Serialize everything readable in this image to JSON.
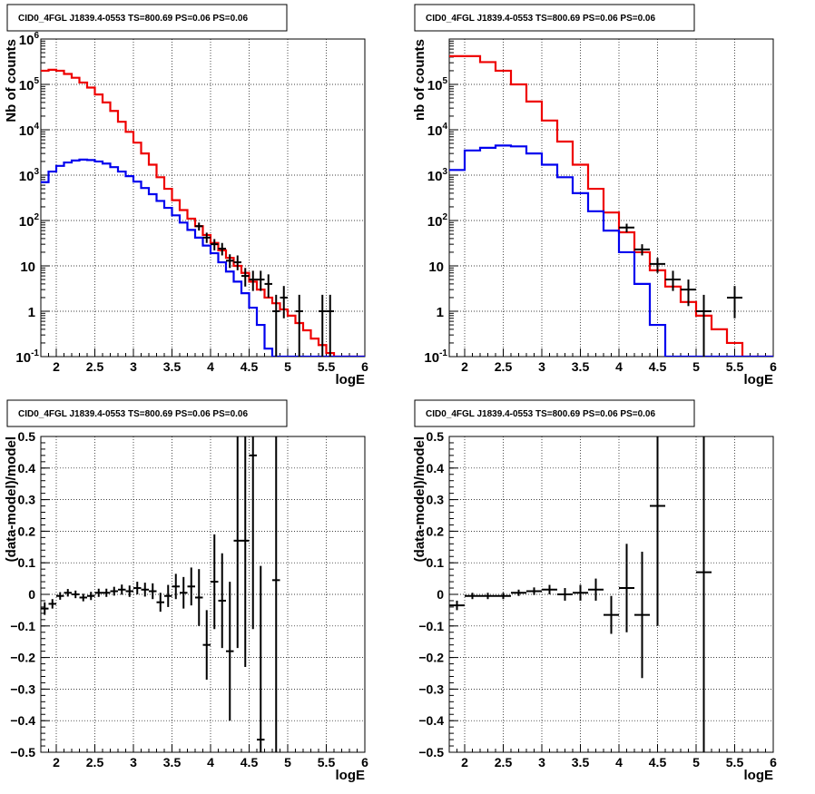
{
  "colors": {
    "model": "#ee0000",
    "source": "#0000ee",
    "data": "#000000"
  },
  "chart_data": [
    {
      "type": "line",
      "title": "CID0_4FGL J1839.4-0553 TS=800.69 PS=0.06 PS=0.06",
      "xlabel": "logE",
      "ylabel": "Nb of counts",
      "xlim": [
        1.8,
        6.0
      ],
      "ylim": [
        0.1,
        1000000
      ],
      "yscale": "log",
      "grid": true,
      "x_ticks": [
        "2",
        "2.5",
        "3",
        "3.5",
        "4",
        "4.5",
        "5",
        "5.5",
        "6"
      ],
      "y_ticks": [
        "10^-1",
        "1",
        "10",
        "10^2",
        "10^3",
        "10^4",
        "10^5",
        "10^6"
      ],
      "bin_edges": [
        1.8,
        1.9,
        2.0,
        2.1,
        2.2,
        2.3,
        2.4,
        2.5,
        2.6,
        2.7,
        2.8,
        2.9,
        3.0,
        3.1,
        3.2,
        3.3,
        3.4,
        3.5,
        3.6,
        3.7,
        3.8,
        3.9,
        4.0,
        4.1,
        4.2,
        4.3,
        4.4,
        4.5,
        4.6,
        4.7,
        4.8,
        4.9,
        5.0,
        5.1,
        5.2,
        5.3,
        5.4,
        5.5,
        5.6,
        5.7,
        5.8,
        5.9,
        6.0
      ],
      "series": [
        {
          "values": [
            200000,
            210000,
            200000,
            170000,
            140000,
            110000,
            85000,
            60000,
            40000,
            26000,
            15000,
            9000,
            5200,
            3000,
            1700,
            900,
            500,
            280,
            170,
            110,
            75,
            48,
            32,
            22,
            15,
            10,
            7,
            4.5,
            3,
            2,
            1.5,
            1.1,
            0.8,
            0.55,
            0.38,
            0.25,
            0.18,
            0.12,
            0.1,
            0.1,
            0.1,
            0.1
          ]
        },
        {
          "values": [
            700,
            1200,
            1600,
            1900,
            2100,
            2200,
            2150,
            2000,
            1800,
            1500,
            1200,
            950,
            720,
            520,
            380,
            270,
            190,
            130,
            90,
            62,
            42,
            28,
            19,
            12,
            7.5,
            4.5,
            2.5,
            1.2,
            0.5,
            0.15,
            0.1,
            0.1,
            0.1,
            0.1,
            0.1,
            0.1,
            0.1,
            0.1,
            0.1,
            0.1,
            0.1,
            0.1
          ]
        }
      ],
      "points": [
        {
          "x": 3.85,
          "y": 75,
          "lo": 60,
          "hi": 90
        },
        {
          "x": 3.95,
          "y": 42,
          "lo": 32,
          "hi": 54
        },
        {
          "x": 4.05,
          "y": 30,
          "lo": 22,
          "hi": 39
        },
        {
          "x": 4.15,
          "y": 24,
          "lo": 17,
          "hi": 32
        },
        {
          "x": 4.25,
          "y": 13,
          "lo": 9,
          "hi": 18
        },
        {
          "x": 4.35,
          "y": 12,
          "lo": 8,
          "hi": 17
        },
        {
          "x": 4.45,
          "y": 6,
          "lo": 3.5,
          "hi": 9
        },
        {
          "x": 4.55,
          "y": 5,
          "lo": 2.8,
          "hi": 7.8
        },
        {
          "x": 4.65,
          "y": 5,
          "lo": 2.8,
          "hi": 7.8
        },
        {
          "x": 4.75,
          "y": 4,
          "lo": 2,
          "hi": 6.5
        },
        {
          "x": 4.85,
          "y": 1,
          "lo": 0.1,
          "hi": 2.3
        },
        {
          "x": 4.95,
          "y": 2,
          "lo": 0.7,
          "hi": 3.6
        },
        {
          "x": 5.15,
          "y": 1,
          "lo": 0.1,
          "hi": 2.3
        },
        {
          "x": 5.45,
          "y": 1,
          "lo": 0.1,
          "hi": 2.3
        },
        {
          "x": 5.55,
          "y": 1,
          "lo": 0.1,
          "hi": 2.3
        }
      ]
    },
    {
      "type": "line",
      "title": "CID0_4FGL J1839.4-0553 TS=800.69 PS=0.06 PS=0.06",
      "xlabel": "logE",
      "ylabel": "nb of counts",
      "xlim": [
        1.8,
        6.0
      ],
      "ylim": [
        0.1,
        1000000
      ],
      "yscale": "log",
      "grid": true,
      "x_ticks": [
        "2",
        "2.5",
        "3",
        "3.5",
        "4",
        "4.5",
        "5",
        "5.5",
        "6"
      ],
      "y_ticks": [
        "10^-1",
        "1",
        "10",
        "10^2",
        "10^3",
        "10^4",
        "10^5"
      ],
      "bin_edges": [
        1.8,
        2.0,
        2.2,
        2.4,
        2.6,
        2.8,
        3.0,
        3.2,
        3.4,
        3.6,
        3.8,
        4.0,
        4.2,
        4.4,
        4.6,
        4.8,
        5.0,
        5.2,
        5.4,
        5.6,
        5.8,
        6.0
      ],
      "series": [
        {
          "values": [
            420000,
            420000,
            310000,
            200000,
            100000,
            42000,
            16000,
            5500,
            1700,
            500,
            150,
            55,
            20,
            8,
            3.5,
            1.6,
            0.8,
            0.4,
            0.2,
            0.1,
            0.1
          ]
        },
        {
          "values": [
            1300,
            3500,
            4000,
            4500,
            4300,
            3000,
            1700,
            900,
            400,
            160,
            60,
            20,
            4,
            0.5,
            0.1,
            0.1,
            0.1,
            0.1,
            0.1,
            0.1,
            0.1
          ]
        }
      ],
      "points": [
        {
          "x": 4.1,
          "y": 70,
          "lo": 55,
          "hi": 85
        },
        {
          "x": 4.3,
          "y": 23,
          "lo": 17,
          "hi": 30
        },
        {
          "x": 4.5,
          "y": 11,
          "lo": 7,
          "hi": 15
        },
        {
          "x": 4.7,
          "y": 5,
          "lo": 2.8,
          "hi": 7.8
        },
        {
          "x": 4.9,
          "y": 3,
          "lo": 1.3,
          "hi": 5
        },
        {
          "x": 5.1,
          "y": 1,
          "lo": 0.1,
          "hi": 2.3
        },
        {
          "x": 5.5,
          "y": 2,
          "lo": 0.7,
          "hi": 3.6
        }
      ]
    },
    {
      "type": "scatter",
      "title": "CID0_4FGL J1839.4-0553 TS=800.69 PS=0.06 PS=0.06",
      "xlabel": "logE",
      "ylabel": "(data-model)/model",
      "xlim": [
        1.8,
        6.0
      ],
      "ylim": [
        -0.5,
        0.5
      ],
      "grid": true,
      "x_ticks": [
        "2",
        "2.5",
        "3",
        "3.5",
        "4",
        "4.5",
        "5",
        "5.5",
        "6"
      ],
      "y_ticks": [
        "-0.5",
        "-0.4",
        "-0.3",
        "-0.2",
        "-0.1",
        "0",
        "0.1",
        "0.2",
        "0.3",
        "0.4",
        "0.5"
      ],
      "bin_width": 0.1,
      "points": [
        {
          "x": 1.85,
          "y": -0.045,
          "e": 0.02
        },
        {
          "x": 1.95,
          "y": -0.03,
          "e": 0.015
        },
        {
          "x": 2.05,
          "y": -0.005,
          "e": 0.012
        },
        {
          "x": 2.15,
          "y": 0.005,
          "e": 0.012
        },
        {
          "x": 2.25,
          "y": 0.0,
          "e": 0.012
        },
        {
          "x": 2.35,
          "y": -0.01,
          "e": 0.012
        },
        {
          "x": 2.45,
          "y": -0.005,
          "e": 0.013
        },
        {
          "x": 2.55,
          "y": 0.005,
          "e": 0.013
        },
        {
          "x": 2.65,
          "y": 0.005,
          "e": 0.013
        },
        {
          "x": 2.75,
          "y": 0.01,
          "e": 0.014
        },
        {
          "x": 2.85,
          "y": 0.015,
          "e": 0.016
        },
        {
          "x": 2.95,
          "y": 0.01,
          "e": 0.018
        },
        {
          "x": 3.05,
          "y": 0.02,
          "e": 0.02
        },
        {
          "x": 3.15,
          "y": 0.015,
          "e": 0.022
        },
        {
          "x": 3.25,
          "y": 0.01,
          "e": 0.025
        },
        {
          "x": 3.35,
          "y": -0.025,
          "e": 0.03
        },
        {
          "x": 3.45,
          "y": -0.005,
          "e": 0.035
        },
        {
          "x": 3.55,
          "y": 0.025,
          "e": 0.04
        },
        {
          "x": 3.65,
          "y": 0.005,
          "e": 0.05
        },
        {
          "x": 3.75,
          "y": 0.025,
          "e": 0.06
        },
        {
          "x": 3.85,
          "y": -0.01,
          "e": 0.09
        },
        {
          "x": 3.95,
          "y": -0.16,
          "e": 0.11
        },
        {
          "x": 4.05,
          "y": 0.04,
          "e": 0.15
        },
        {
          "x": 4.15,
          "y": -0.02,
          "e": 0.15
        },
        {
          "x": 4.25,
          "y": -0.18,
          "e": 0.22
        },
        {
          "x": 4.35,
          "y": 0.17,
          "e": 0.34
        },
        {
          "x": 4.45,
          "y": 0.17,
          "e": 0.4
        },
        {
          "x": 4.55,
          "y": 0.44,
          "e": 0.55
        },
        {
          "x": 4.65,
          "y": -0.46,
          "e": 0.55
        },
        {
          "x": 4.85,
          "y": 0.045,
          "e": 0.6
        }
      ]
    },
    {
      "type": "scatter",
      "title": "CID0_4FGL J1839.4-0553 TS=800.69 PS=0.06 PS=0.06",
      "xlabel": "logE",
      "ylabel": "(data-model)/model",
      "xlim": [
        1.8,
        6.0
      ],
      "ylim": [
        -0.5,
        0.5
      ],
      "grid": true,
      "x_ticks": [
        "2",
        "2.5",
        "3",
        "3.5",
        "4",
        "4.5",
        "5",
        "5.5",
        "6"
      ],
      "y_ticks": [
        "-0.5",
        "-0.4",
        "-0.3",
        "-0.2",
        "-0.1",
        "0",
        "0.1",
        "0.2",
        "0.3",
        "0.4",
        "0.5"
      ],
      "bin_width": 0.2,
      "points": [
        {
          "x": 1.9,
          "y": -0.035,
          "e": 0.015
        },
        {
          "x": 2.1,
          "y": -0.005,
          "e": 0.01
        },
        {
          "x": 2.3,
          "y": -0.005,
          "e": 0.01
        },
        {
          "x": 2.5,
          "y": -0.005,
          "e": 0.01
        },
        {
          "x": 2.7,
          "y": 0.005,
          "e": 0.01
        },
        {
          "x": 2.9,
          "y": 0.01,
          "e": 0.012
        },
        {
          "x": 3.1,
          "y": 0.015,
          "e": 0.015
        },
        {
          "x": 3.3,
          "y": 0.0,
          "e": 0.02
        },
        {
          "x": 3.5,
          "y": 0.005,
          "e": 0.025
        },
        {
          "x": 3.7,
          "y": 0.015,
          "e": 0.035
        },
        {
          "x": 3.9,
          "y": -0.065,
          "e": 0.06
        },
        {
          "x": 4.1,
          "y": 0.02,
          "e": 0.14
        },
        {
          "x": 4.3,
          "y": -0.065,
          "e": 0.2
        },
        {
          "x": 4.5,
          "y": 0.28,
          "e": 0.38
        },
        {
          "x": 5.1,
          "y": 0.07,
          "e": 0.6
        }
      ]
    }
  ]
}
